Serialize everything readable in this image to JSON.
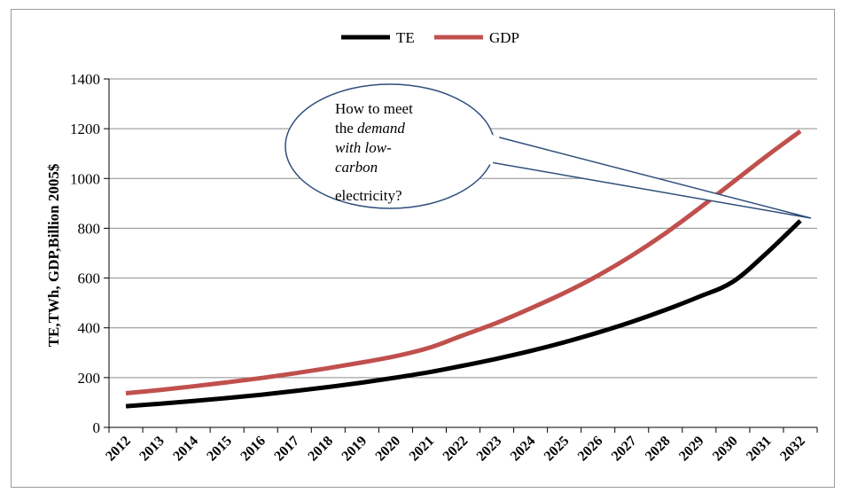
{
  "chart_data": {
    "type": "line",
    "categories": [
      "2012",
      "2013",
      "2014",
      "2015",
      "2016",
      "2017",
      "2018",
      "2019",
      "2020",
      "2021",
      "2022",
      "2023",
      "2024",
      "2025",
      "2026",
      "2027",
      "2028",
      "2029",
      "2030",
      "2031",
      "2032"
    ],
    "series": [
      {
        "name": "TE",
        "color": "#000000",
        "values": [
          85,
          95,
          106,
          118,
          131,
          146,
          162,
          180,
          200,
          222,
          248,
          276,
          307,
          342,
          381,
          424,
          472,
          525,
          585,
          700,
          830
        ]
      },
      {
        "name": "GDP",
        "color": "#c0504d",
        "values": [
          137,
          150,
          165,
          181,
          198,
          217,
          238,
          261,
          286,
          320,
          370,
          420,
          478,
          540,
          610,
          690,
          780,
          880,
          985,
          1090,
          1190
        ]
      }
    ],
    "ylabel": "TE,TWh,  GDP,Billion 2005$",
    "xlabel": "",
    "ylim": [
      0,
      1400
    ],
    "yticks": [
      "0",
      "200",
      "400",
      "600",
      "800",
      "1000",
      "1200",
      "1400"
    ],
    "grid": true,
    "legend_position": "top-center",
    "annotation": {
      "line1": "How to meet",
      "line2_plain": "the ",
      "line2_italic": "demand",
      "line3": "with low-",
      "line4": "carbon",
      "line5": "electricity?"
    }
  }
}
